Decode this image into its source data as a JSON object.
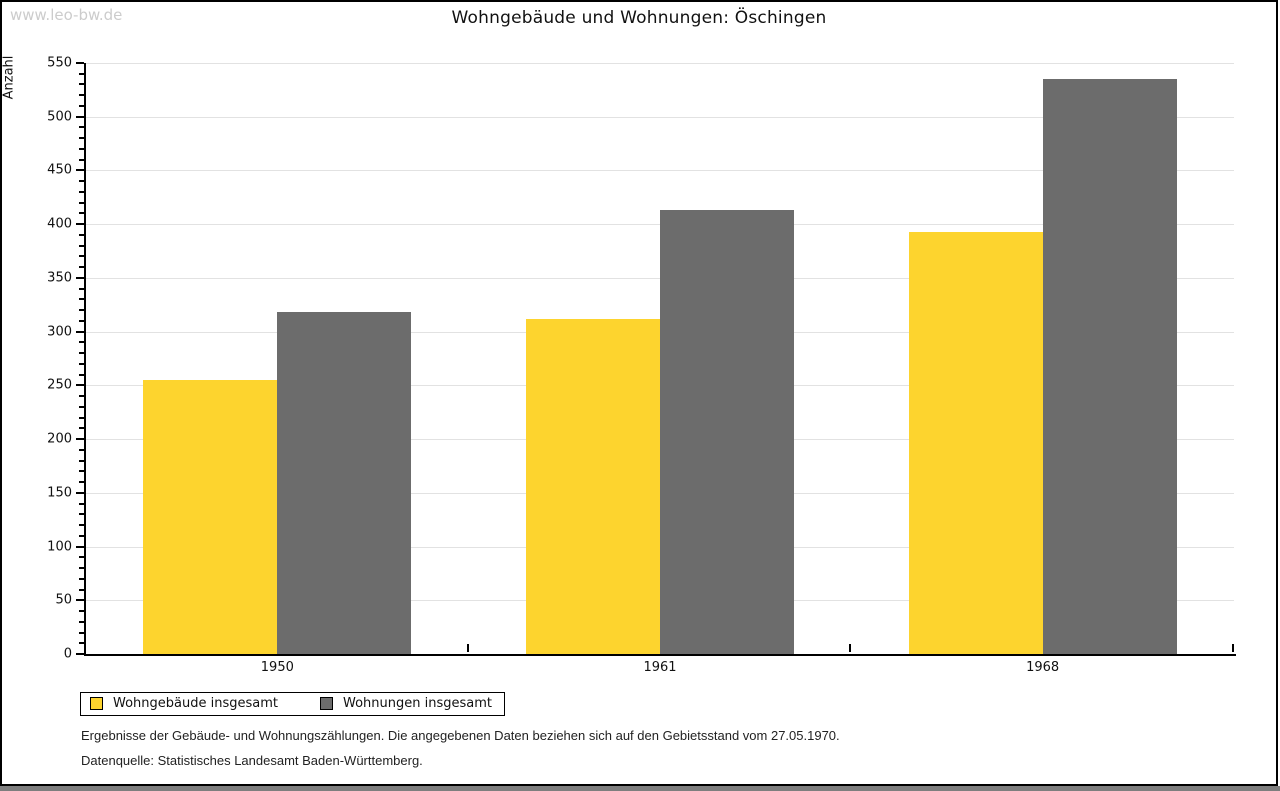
{
  "watermark": "www.leo-bw.de",
  "header": {
    "title": "Wohngebäude und Wohnungen: Öschingen"
  },
  "chart_data": {
    "type": "bar",
    "title": "Wohngebäude und Wohnungen: Öschingen",
    "ylabel": "Anzahl",
    "xlabel": "",
    "categories": [
      "1950",
      "1961",
      "1968"
    ],
    "series": [
      {
        "name": "Wohngebäude insgesamt",
        "color": "#fdd42e",
        "values": [
          255,
          312,
          393
        ]
      },
      {
        "name": "Wohnungen insgesamt",
        "color": "#6c6c6c",
        "values": [
          318,
          413,
          535
        ]
      }
    ],
    "ylim": [
      0,
      550
    ],
    "ytick_step": 50,
    "yminor_step": 10,
    "grid": true,
    "legend_position": "bottom-left",
    "gridline_color": "#e2e2e2"
  },
  "footnotes": {
    "line1": "Ergebnisse der Gebäude- und Wohnungszählungen. Die angegebenen Daten beziehen sich auf den Gebietsstand vom 27.05.1970.",
    "line2": "Datenquelle: Statistisches Landesamt Baden-Württemberg."
  }
}
